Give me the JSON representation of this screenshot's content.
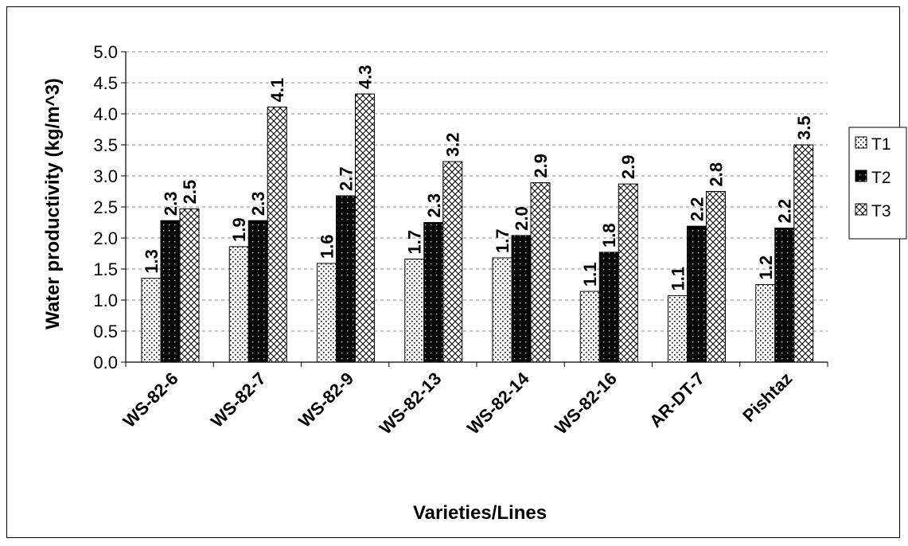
{
  "chart_data": {
    "type": "bar",
    "categories": [
      "WS-82-6",
      "WS-82-7",
      "WS-82-9",
      "WS-82-13",
      "WS-82-14",
      "WS-82-16",
      "AR-DT-7",
      "Pishtaz"
    ],
    "series": [
      {
        "name": "T1",
        "values": [
          1.35,
          1.86,
          1.59,
          1.66,
          1.68,
          1.14,
          1.07,
          1.25
        ],
        "labels": [
          "1.3",
          "1.9",
          "1.6",
          "1.7",
          "1.7",
          "1.1",
          "1.1",
          "1.2"
        ],
        "pattern": "dots"
      },
      {
        "name": "T2",
        "values": [
          2.28,
          2.28,
          2.68,
          2.25,
          2.04,
          1.77,
          2.19,
          2.16
        ],
        "labels": [
          "2.3",
          "2.3",
          "2.7",
          "2.3",
          "2.0",
          "1.8",
          "2.2",
          "2.2"
        ],
        "pattern": "black-dotted"
      },
      {
        "name": "T3",
        "values": [
          2.47,
          4.11,
          4.32,
          3.23,
          2.89,
          2.87,
          2.75,
          3.5
        ],
        "labels": [
          "2.5",
          "4.1",
          "4.3",
          "3.2",
          "2.9",
          "2.9",
          "2.8",
          "3.5"
        ],
        "pattern": "crosshatch"
      }
    ],
    "xlabel": "Varieties/Lines",
    "ylabel": "Water productivity (kg/m^3)",
    "ylim": [
      0,
      5
    ],
    "yticks": [
      "0.0",
      "0.5",
      "1.0",
      "1.5",
      "2.0",
      "2.5",
      "3.0",
      "3.5",
      "4.0",
      "4.5",
      "5.0"
    ],
    "grid": "horizontal-dashed",
    "legend": "right",
    "colors": {
      "bar_outline": "#000000",
      "t2_fill": "#000000",
      "gridline": "#888888"
    }
  }
}
